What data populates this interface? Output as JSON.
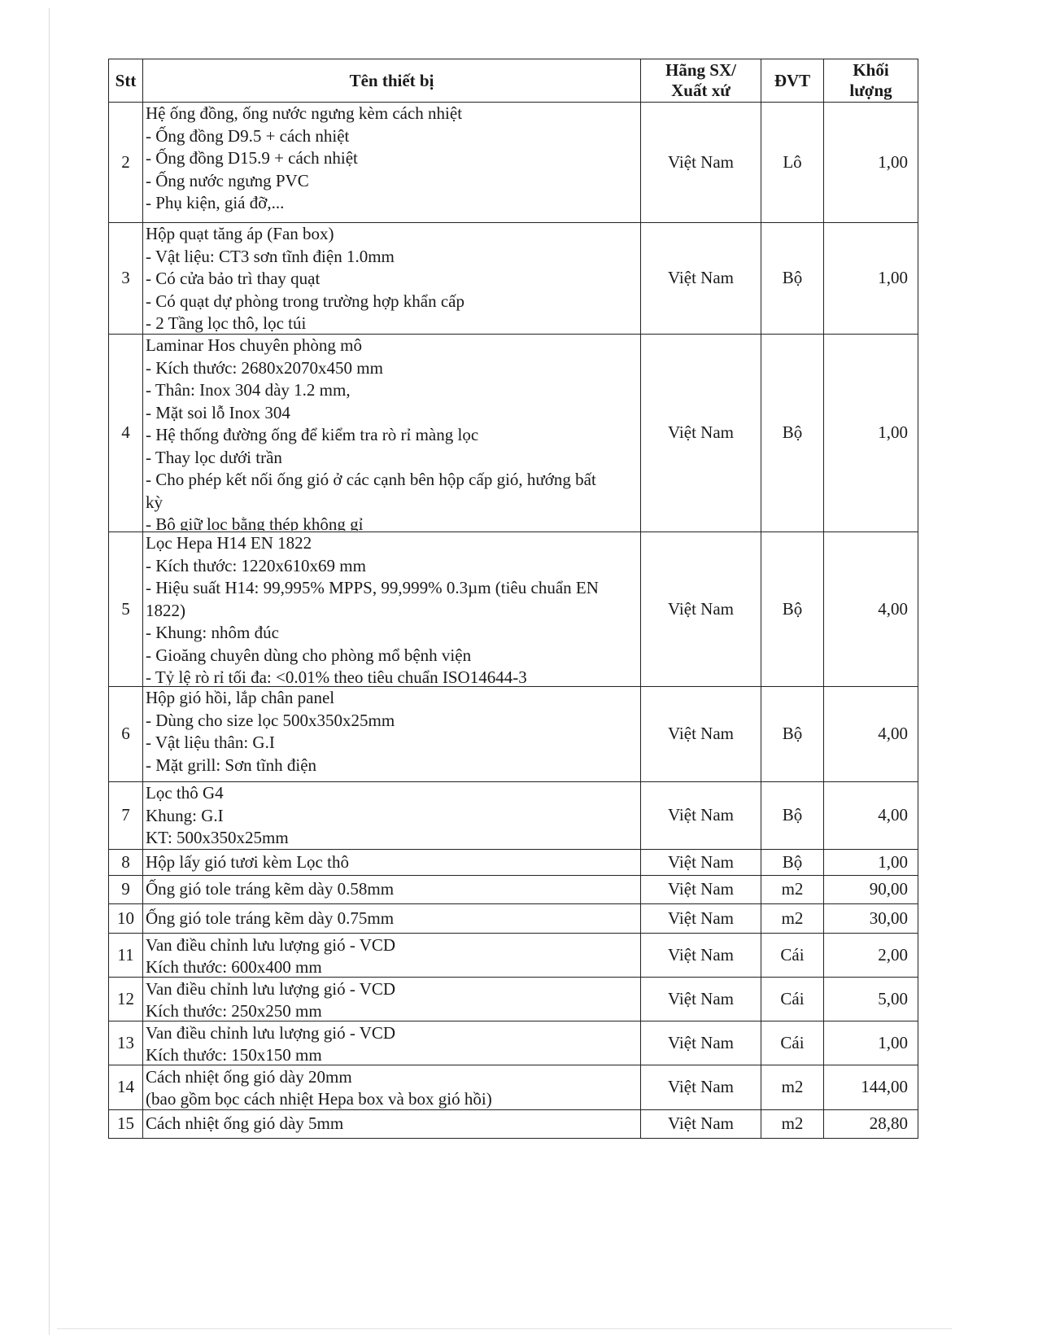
{
  "header": {
    "stt": "Stt",
    "name": "Tên thiết bị",
    "origin_line1": "Hãng SX/",
    "origin_line2": "Xuất xứ",
    "unit": "ĐVT",
    "qty_line1": "Khối",
    "qty_line2": "lượng"
  },
  "rows": [
    {
      "stt": "2",
      "lines": [
        "Hệ ống đồng, ống nước ngưng kèm cách nhiệt",
        "- Ống đồng D9.5 + cách nhiệt",
        "- Ống đồng D15.9 + cách nhiệt",
        "- Ống nước ngưng PVC",
        "- Phụ kiện, giá đỡ,..."
      ],
      "origin": "Việt Nam",
      "unit": "Lô",
      "qty": "1,00"
    },
    {
      "stt": "3",
      "lines": [
        "Hộp quạt tăng áp (Fan box)",
        "- Vật liệu: CT3 sơn tĩnh điện 1.0mm",
        "- Có cửa bảo trì thay quạt",
        "- Có quạt dự phòng trong trường hợp khẩn cấp",
        "- 2 Tầng lọc thô, lọc túi"
      ],
      "origin": "Việt Nam",
      "unit": "Bộ",
      "qty": "1,00"
    },
    {
      "stt": "4",
      "lines": [
        "Laminar Hos chuyên phòng mô",
        "- Kích thước: 2680x2070x450 mm",
        "- Thân: Inox 304 dày 1.2 mm,",
        "- Mặt soi lỗ Inox 304",
        "- Hệ thống đường ống để kiểm tra rò rỉ màng lọc",
        "- Thay lọc dưới trần",
        "- Cho phép kết nối ống gió ở các cạnh bên hộp cấp gió, hướng bất",
        "kỳ",
        "- Bộ giữ lọc bằng thép không gỉ"
      ],
      "origin": "Việt Nam",
      "unit": "Bộ",
      "qty": "1,00"
    },
    {
      "stt": "5",
      "lines": [
        "Lọc Hepa H14 EN 1822",
        "- Kích thước: 1220x610x69 mm",
        "- Hiệu suất H14: 99,995% MPPS, 99,999% 0.3µm (tiêu chuẩn EN",
        "1822)",
        "- Khung: nhôm đúc",
        "- Gioăng chuyên dùng cho phòng mổ bệnh viện",
        "- Tỷ lệ rò rỉ tối đa: <0.01% theo tiêu chuẩn ISO14644-3"
      ],
      "origin": "Việt Nam",
      "unit": "Bộ",
      "qty": "4,00"
    },
    {
      "stt": "6",
      "lines": [
        "Hộp gió hồi, lắp chân panel",
        "- Dùng cho size lọc 500x350x25mm",
        "- Vật liệu thân: G.I",
        "- Mặt grill: Sơn tĩnh điện"
      ],
      "origin": "Việt Nam",
      "unit": "Bộ",
      "qty": "4,00"
    },
    {
      "stt": "7",
      "lines": [
        "Lọc thô G4",
        "Khung: G.I",
        "KT: 500x350x25mm"
      ],
      "origin": "Việt Nam",
      "unit": "Bộ",
      "qty": "4,00"
    },
    {
      "stt": "8",
      "lines": [
        "Hộp lấy gió tươi kèm Lọc thô"
      ],
      "origin": "Việt Nam",
      "unit": "Bộ",
      "qty": "1,00"
    },
    {
      "stt": "9",
      "lines": [
        "Ống gió tole tráng kẽm dày 0.58mm"
      ],
      "origin": "Việt Nam",
      "unit": "m2",
      "qty": "90,00"
    },
    {
      "stt": "10",
      "lines": [
        "Ống gió tole tráng kẽm dày 0.75mm"
      ],
      "origin": "Việt Nam",
      "unit": "m2",
      "qty": "30,00"
    },
    {
      "stt": "11",
      "lines": [
        "Van điều chỉnh lưu lượng gió - VCD",
        "Kích thước: 600x400 mm"
      ],
      "origin": "Việt Nam",
      "unit": "Cái",
      "qty": "2,00"
    },
    {
      "stt": "12",
      "lines": [
        "Van điều chỉnh lưu lượng gió - VCD",
        "Kích thước: 250x250 mm"
      ],
      "origin": "Việt Nam",
      "unit": "Cái",
      "qty": "5,00"
    },
    {
      "stt": "13",
      "lines": [
        "Van điều chỉnh lưu lượng gió - VCD",
        "Kích thước: 150x150 mm"
      ],
      "origin": "Việt Nam",
      "unit": "Cái",
      "qty": "1,00"
    },
    {
      "stt": "14",
      "lines": [
        "Cách nhiệt ống gió dày 20mm",
        "(bao gồm bọc cách nhiệt Hepa box và box gió hồi)"
      ],
      "origin": "Việt Nam",
      "unit": "m2",
      "qty": "144,00"
    },
    {
      "stt": "15",
      "lines": [
        "Cách nhiệt ống gió dày 5mm"
      ],
      "origin": "Việt Nam",
      "unit": "m2",
      "qty": "28,80"
    }
  ]
}
